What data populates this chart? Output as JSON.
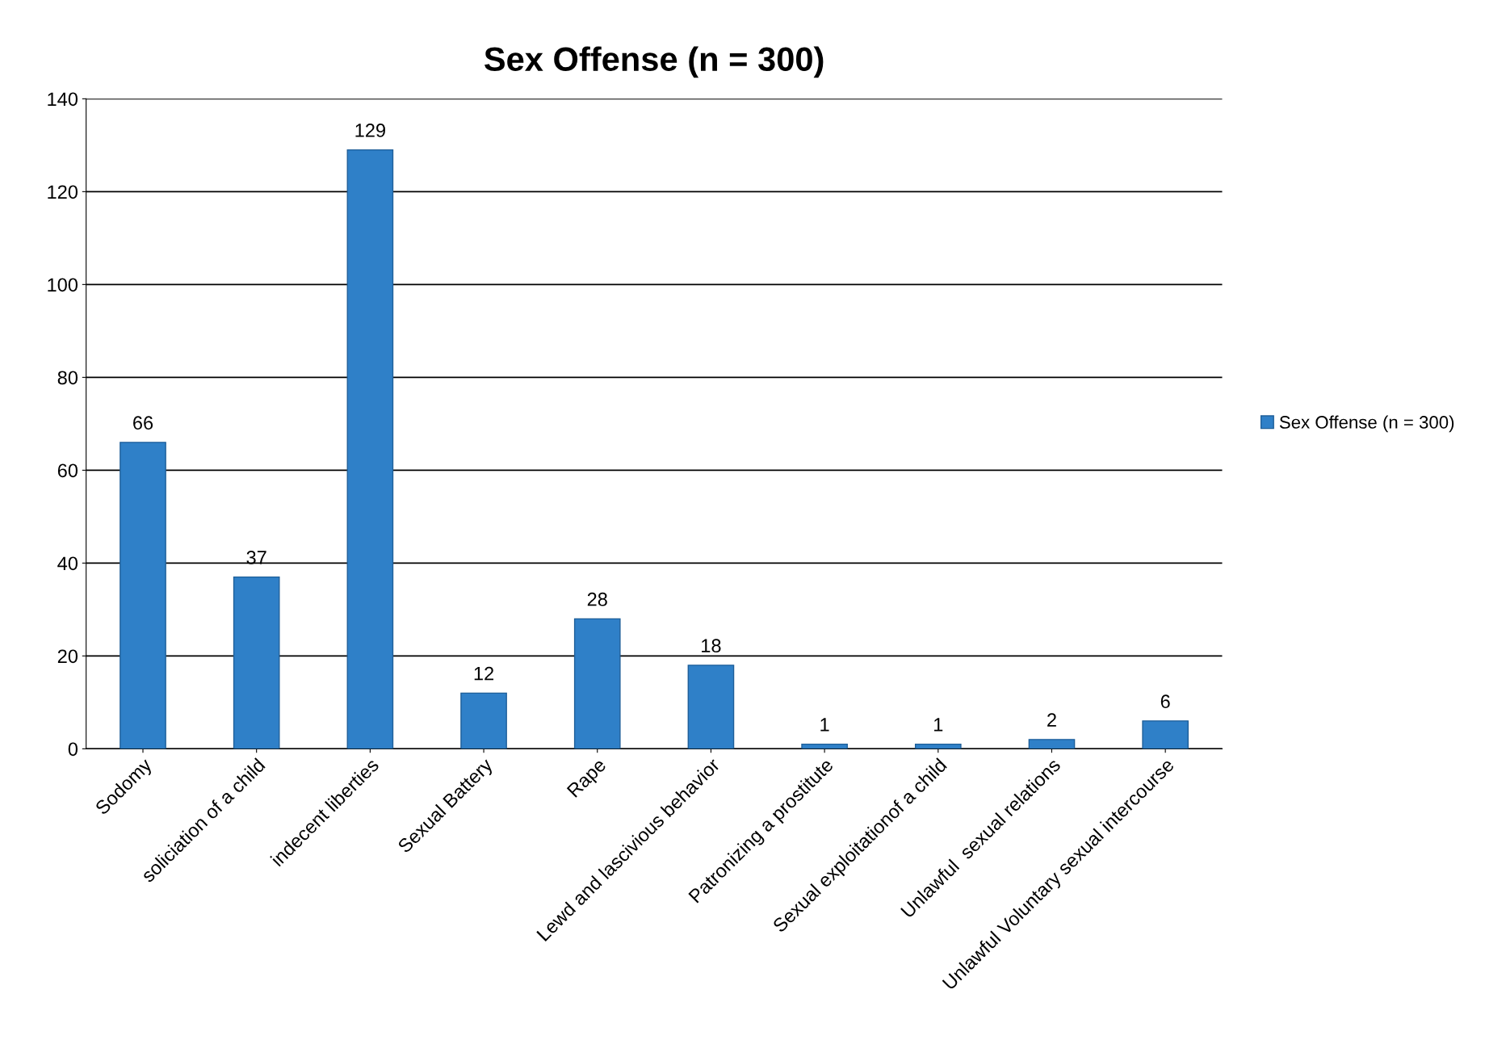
{
  "chart_data": {
    "type": "bar",
    "title": "Sex Offense (n = 300)",
    "categories": [
      "Sodomy",
      "soliciation of a child",
      "indecent liberties",
      "Sexual Battery",
      "Rape",
      "Lewd and lascivious behavior",
      "Patronizing a prostitute",
      "Sexual exploitationof a child",
      "Unlawful  sexual relations",
      "Unlawful Voluntary sexual intercourse"
    ],
    "series": [
      {
        "name": "Sex Offense (n = 300)",
        "color": "#2f80c8",
        "values": [
          66,
          37,
          129,
          12,
          28,
          18,
          1,
          1,
          2,
          6
        ]
      }
    ],
    "ylim": [
      0,
      140
    ],
    "yticks": [
      0,
      20,
      40,
      60,
      80,
      100,
      120,
      140
    ],
    "grid": "y",
    "legend": "right",
    "data_labels": true
  }
}
